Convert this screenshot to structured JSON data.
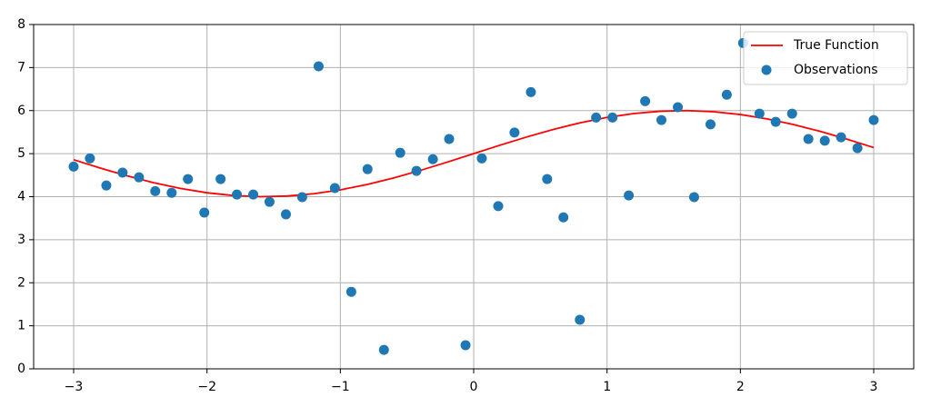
{
  "chart_data": {
    "type": "scatter",
    "xlim": [
      -3.3,
      3.3
    ],
    "ylim": [
      0,
      8
    ],
    "xticks": [
      {
        "value": -3,
        "label": "−3"
      },
      {
        "value": -2,
        "label": "−2"
      },
      {
        "value": -1,
        "label": "−1"
      },
      0,
      1,
      2,
      3
    ],
    "yticks": [
      0,
      1,
      2,
      3,
      4,
      5,
      6,
      7,
      8
    ],
    "grid": true,
    "legend": "upper right",
    "series": [
      {
        "name": "True Function",
        "type": "line",
        "color": "#ff0000",
        "x": [
          -3,
          -2.8,
          -2.6,
          -2.4,
          -2.2,
          -2,
          -1.8,
          -1.6,
          -1.4,
          -1.2,
          -1,
          -0.8,
          -0.6,
          -0.4,
          -0.2,
          0,
          0.2,
          0.4,
          0.6,
          0.8,
          1,
          1.2,
          1.4,
          1.6,
          1.8,
          2,
          2.2,
          2.4,
          2.6,
          2.8,
          3
        ],
        "y": [
          4.859,
          4.665,
          4.485,
          4.325,
          4.192,
          4.091,
          4.026,
          4.0,
          4.015,
          4.068,
          4.159,
          4.283,
          4.435,
          4.611,
          4.801,
          5.0,
          5.199,
          5.389,
          5.565,
          5.717,
          5.841,
          5.932,
          5.985,
          6.0,
          5.974,
          5.909,
          5.808,
          5.675,
          5.516,
          5.335,
          5.141
        ]
      },
      {
        "name": "Observations",
        "type": "scatter",
        "color": "#1f77b4",
        "x": [
          -3,
          -2.878,
          -2.755,
          -2.633,
          -2.51,
          -2.388,
          -2.265,
          -2.143,
          -2.02,
          -1.898,
          -1.776,
          -1.653,
          -1.531,
          -1.408,
          -1.286,
          -1.163,
          -1.041,
          -0.918,
          -0.796,
          -0.673,
          -0.551,
          -0.429,
          -0.306,
          -0.184,
          -0.061,
          0.061,
          0.184,
          0.306,
          0.429,
          0.551,
          0.673,
          0.796,
          0.918,
          1.041,
          1.163,
          1.286,
          1.408,
          1.531,
          1.653,
          1.776,
          1.898,
          2.02,
          2.143,
          2.265,
          2.388,
          2.51,
          2.633,
          2.755,
          2.878,
          3
        ],
        "y": [
          4.7,
          4.89,
          4.26,
          4.56,
          4.45,
          4.13,
          4.09,
          4.41,
          3.63,
          4.41,
          4.05,
          4.05,
          3.88,
          3.59,
          3.99,
          7.03,
          4.2,
          1.79,
          4.64,
          0.44,
          5.02,
          4.6,
          4.87,
          5.34,
          0.55,
          4.89,
          3.78,
          5.49,
          6.43,
          4.41,
          3.52,
          1.14,
          5.84,
          5.84,
          4.03,
          6.22,
          5.78,
          6.08,
          3.99,
          5.68,
          6.37,
          7.57,
          5.93,
          5.74,
          5.93,
          5.34,
          5.3,
          5.38,
          5.13,
          5.78
        ]
      }
    ]
  }
}
